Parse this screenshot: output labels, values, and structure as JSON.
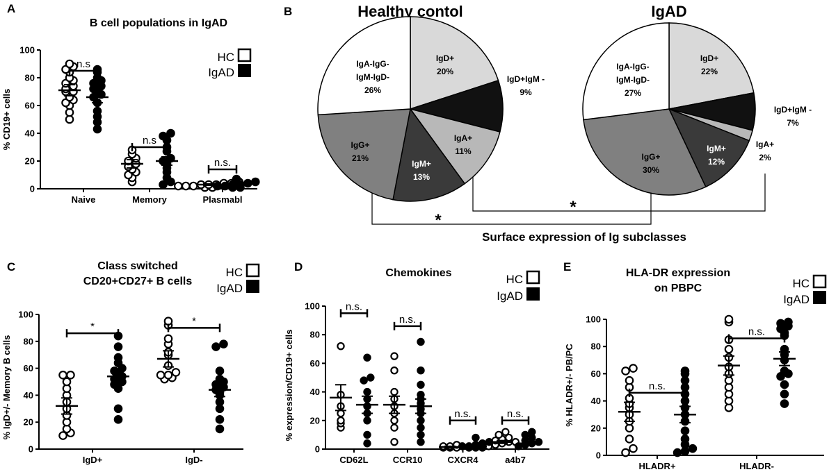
{
  "colors": {
    "black": "#000000",
    "white": "#ffffff"
  },
  "legend": {
    "hc": "HC",
    "igad": "IgAD"
  },
  "chart_data": [
    {
      "panel": "A",
      "type": "scatter",
      "title": "B cell populations in IgAD",
      "ylabel": "% CD19+ cells",
      "ylim": [
        0,
        100
      ],
      "yticks": [
        0,
        20,
        40,
        60,
        80,
        100
      ],
      "categories": [
        "Naive",
        "Memory",
        "Plasmabl"
      ],
      "series": [
        {
          "name": "HC",
          "marker": "open",
          "points": [
            [
              70,
              90,
              88,
              86,
              84,
              80,
              78,
              76,
              74,
              72,
              70,
              66,
              64,
              62,
              60,
              55,
              50
            ],
            [
              28,
              25,
              22,
              20,
              18,
              16,
              14,
              12,
              10,
              8,
              5
            ],
            [
              5,
              4,
              4,
              3,
              3,
              3,
              2,
              2,
              2,
              1,
              1
            ]
          ],
          "mean": [
            71,
            18,
            3
          ],
          "sem": [
            4,
            3,
            0.5
          ]
        },
        {
          "name": "IgAD",
          "marker": "filled",
          "points": [
            [
              86,
              84,
              80,
              78,
              76,
              74,
              72,
              70,
              68,
              66,
              62,
              56,
              52,
              48,
              43
            ],
            [
              40,
              38,
              35,
              30,
              27,
              22,
              20,
              18,
              15,
              12,
              8,
              5,
              3
            ],
            [
              7,
              5,
              4,
              3,
              3,
              2,
              2,
              1,
              1
            ]
          ],
          "mean": [
            66,
            20,
            3
          ],
          "sem": [
            4,
            3,
            1
          ]
        }
      ],
      "comparisons": [
        {
          "between": "Naive",
          "label": "n.s",
          "y": 85
        },
        {
          "between": "Memory",
          "label": "n.s",
          "y": 30
        },
        {
          "between": "Plasmabl",
          "label": "n.s.",
          "y": 14
        }
      ]
    },
    {
      "panel": "B",
      "type": "pie",
      "title": "Healthy contol",
      "slices": [
        {
          "label": "IgD+",
          "value": 20,
          "text": "20%",
          "color": "#d9d9d9"
        },
        {
          "label": "IgD+IgM -",
          "value": 9,
          "text": "9%",
          "color": "#111111"
        },
        {
          "label": "IgA+",
          "value": 11,
          "text": "11%",
          "color": "#b8b8b8"
        },
        {
          "label": "IgM+",
          "value": 13,
          "text": "13%",
          "color": "#3a3a3a"
        },
        {
          "label": "IgG+",
          "value": 21,
          "text": "21%",
          "color": "#808080"
        },
        {
          "label": "IgA-IgG-IgM-IgD-",
          "value": 26,
          "text": "26%",
          "color": "#ffffff"
        }
      ]
    },
    {
      "panel": "B",
      "type": "pie",
      "title": "IgAD",
      "slices": [
        {
          "label": "IgD+",
          "value": 22,
          "text": "22%",
          "color": "#d9d9d9"
        },
        {
          "label": "IgD+IgM -",
          "value": 7,
          "text": "7%",
          "color": "#111111"
        },
        {
          "label": "IgA+",
          "value": 2,
          "text": "2%",
          "color": "#b8b8b8"
        },
        {
          "label": "IgM+",
          "value": 12,
          "text": "12%",
          "color": "#3a3a3a"
        },
        {
          "label": "IgG+",
          "value": 30,
          "text": "30%",
          "color": "#808080"
        },
        {
          "label": "IgA-IgG-IgM-IgD-",
          "value": 27,
          "text": "27%",
          "color": "#ffffff"
        }
      ],
      "caption": "Surface expression of Ig subclasses",
      "significance": [
        "*",
        "*"
      ]
    },
    {
      "panel": "C",
      "type": "scatter",
      "title": "Class switched",
      "subtitle": "CD20+CD27+ B cells",
      "ylabel": "% IgD+/- Memory B cells",
      "ylim": [
        0,
        100
      ],
      "yticks": [
        0,
        20,
        40,
        60,
        80,
        100
      ],
      "categories": [
        "IgD+",
        "IgD-"
      ],
      "series": [
        {
          "name": "HC",
          "marker": "open",
          "points": [
            [
              55,
              55,
              50,
              45,
              40,
              35,
              30,
              25,
              20,
              15,
              12,
              10
            ],
            [
              95,
              92,
              82,
              78,
              72,
              70,
              62,
              57,
              55,
              55,
              53,
              52
            ]
          ],
          "mean": [
            32,
            67
          ],
          "sem": [
            6,
            6
          ]
        },
        {
          "name": "IgAD",
          "marker": "filled",
          "points": [
            [
              84,
              76,
              68,
              64,
              60,
              58,
              56,
              54,
              52,
              50,
              48,
              45,
              30,
              22
            ],
            [
              78,
              76,
              58,
              52,
              50,
              48,
              46,
              44,
              42,
              40,
              35,
              30,
              22,
              15
            ]
          ],
          "mean": [
            54,
            44
          ],
          "sem": [
            4,
            5
          ]
        }
      ],
      "comparisons": [
        {
          "between": "IgD+",
          "label": "*",
          "y": 86
        },
        {
          "between": "IgD-",
          "label": "*",
          "y": 90
        }
      ]
    },
    {
      "panel": "D",
      "type": "scatter",
      "title": "Chemokines",
      "ylabel": "% expression/CD19+ cells",
      "ylim": [
        0,
        100
      ],
      "yticks": [
        0,
        20,
        40,
        60,
        80,
        100
      ],
      "categories": [
        "CD62L",
        "CCR10",
        "CXCR4",
        "a4b7"
      ],
      "series": [
        {
          "name": "HC",
          "marker": "open",
          "points": [
            [
              72,
              38,
              30,
              25,
              20,
              18,
              15
            ],
            [
              65,
              55,
              40,
              35,
              30,
              25,
              20,
              15,
              5
            ],
            [
              3,
              2,
              2,
              1,
              1,
              1
            ],
            [
              12,
              10,
              8,
              7,
              6,
              5,
              5,
              4,
              3,
              2
            ]
          ],
          "mean": [
            36,
            31,
            1.5,
            5
          ],
          "sem": [
            9,
            6,
            0.5,
            1
          ]
        },
        {
          "name": "IgAD",
          "marker": "filled",
          "points": [
            [
              64,
              50,
              48,
              40,
              35,
              30,
              25,
              20,
              10,
              4
            ],
            [
              75,
              55,
              45,
              38,
              35,
              32,
              28,
              25,
              20,
              15,
              10,
              5
            ],
            [
              8,
              5,
              4,
              3,
              2,
              2,
              1,
              1,
              1
            ],
            [
              12,
              10,
              8,
              6,
              5,
              4,
              3,
              2
            ]
          ],
          "mean": [
            31,
            30,
            2,
            4
          ],
          "sem": [
            6,
            5,
            0.5,
            1
          ]
        }
      ],
      "comparisons": [
        {
          "between": "CD62L",
          "label": "n.s.",
          "y": 95
        },
        {
          "between": "CCR10",
          "label": "n.s.",
          "y": 86
        },
        {
          "between": "CXCR4",
          "label": "n.s.",
          "y": 20
        },
        {
          "between": "a4b7",
          "label": "n.s.",
          "y": 20
        }
      ]
    },
    {
      "panel": "E",
      "type": "scatter",
      "title": "HLA-DR expression",
      "subtitle": "on PBPC",
      "ylabel": "% HLADR+/- PB/PC",
      "ylim": [
        0,
        100
      ],
      "yticks": [
        0,
        20,
        40,
        60,
        80,
        100
      ],
      "categories": [
        "HLADR+",
        "HLADR-"
      ],
      "series": [
        {
          "name": "HC",
          "marker": "open",
          "points": [
            [
              64,
              62,
              55,
              50,
              42,
              38,
              35,
              30,
              25,
              20,
              12,
              5,
              2
            ],
            [
              100,
              98,
              85,
              78,
              72,
              65,
              60,
              55,
              50,
              45,
              40,
              35
            ]
          ],
          "mean": [
            32,
            66
          ],
          "sem": [
            7,
            7
          ]
        },
        {
          "name": "IgAD",
          "marker": "filled",
          "points": [
            [
              62,
              60,
              55,
              50,
              45,
              40,
              35,
              30,
              25,
              18,
              12,
              8,
              5,
              3,
              2
            ],
            [
              98,
              97,
              95,
              93,
              90,
              88,
              78,
              74,
              70,
              62,
              60,
              58,
              52,
              45,
              38
            ]
          ],
          "mean": [
            30,
            71
          ],
          "sem": [
            6,
            5
          ]
        }
      ],
      "comparisons": [
        {
          "between": "HLADR+",
          "label": "n.s.",
          "y": 46
        },
        {
          "between": "HLADR-",
          "label": "n.s.",
          "y": 86
        }
      ]
    }
  ]
}
